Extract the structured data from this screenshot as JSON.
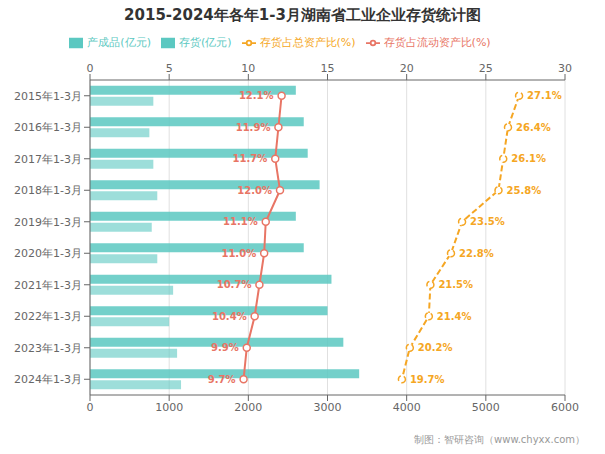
{
  "chart_data": {
    "type": "bar",
    "orientation": "horizontal",
    "title": "2015-2024年各年1-3月湖南省工业企业存货统计图",
    "categories": [
      "2015年1-3月",
      "2016年1-3月",
      "2017年1-3月",
      "2018年1-3月",
      "2019年1-3月",
      "2020年1-3月",
      "2021年1-3月",
      "2022年1-3月",
      "2023年1-3月",
      "2024年1-3月"
    ],
    "series": [
      {
        "name": "存货(亿元)",
        "type": "bar",
        "color": "#5BC8C1",
        "values": [
          2600,
          2700,
          2750,
          2900,
          2600,
          2700,
          3050,
          3000,
          3200,
          3400
        ]
      },
      {
        "name": "产成品(亿元)",
        "type": "bar",
        "color": "#5BC8C1",
        "values": [
          800,
          750,
          800,
          850,
          780,
          850,
          1050,
          1000,
          1100,
          1150
        ]
      },
      {
        "name": "存货占流动资产比(%)",
        "type": "line",
        "axis": "x2",
        "color": "#E87565",
        "marker": "o",
        "line_style": "solid",
        "data_labels": true,
        "values": [
          12.1,
          11.9,
          11.7,
          12.0,
          11.1,
          11.0,
          10.7,
          10.4,
          9.9,
          9.7
        ],
        "value_labels": [
          "12.1%",
          "11.9%",
          "11.7%",
          "12.0%",
          "11.1%",
          "11.0%",
          "10.7%",
          "10.4%",
          "9.9%",
          "9.7%"
        ]
      },
      {
        "name": "存货占总资产比(%)",
        "type": "line",
        "axis": "x2",
        "color": "#F5A623",
        "marker": "o",
        "line_style": "dashed",
        "data_labels": true,
        "values": [
          27.1,
          26.4,
          26.1,
          25.8,
          23.5,
          22.8,
          21.5,
          21.4,
          20.2,
          19.7
        ],
        "value_labels": [
          "27.1%",
          "26.4%",
          "26.1%",
          "25.8%",
          "23.5%",
          "22.8%",
          "21.5%",
          "21.4%",
          "20.2%",
          "19.7%"
        ]
      }
    ],
    "xlim": [
      0,
      6000
    ],
    "xticks": [
      0,
      1000,
      2000,
      3000,
      4000,
      5000,
      6000
    ],
    "x2lim": [
      0,
      30
    ],
    "x2ticks": [
      0,
      5,
      10,
      15,
      20,
      25,
      30
    ],
    "grid": true,
    "legend": "top",
    "annotations": [
      "制图：智研咨询（www.chyxx.com）"
    ]
  }
}
